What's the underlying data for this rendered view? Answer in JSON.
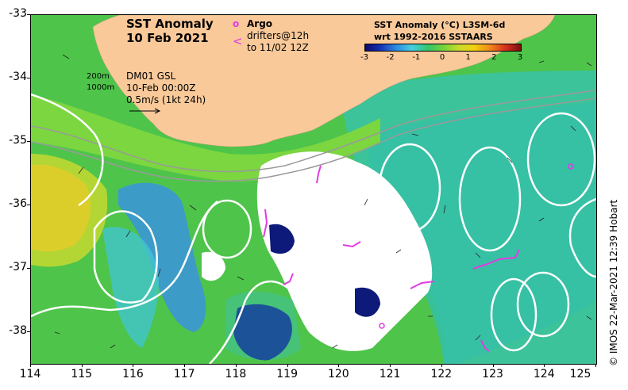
{
  "title": {
    "line1": "SST Anomaly",
    "line2": "10 Feb 2021"
  },
  "legend_argo": {
    "symbol": "o",
    "label": "Argo"
  },
  "legend_drifters": {
    "symbol": "<",
    "line1": "drifters@12h",
    "line2": "to 11/02 12Z"
  },
  "contour_labels": {
    "c200": "200m",
    "c1000": "1000m"
  },
  "model_info": {
    "line1": "DM01 GSL",
    "line2": "10-Feb 00:00Z",
    "line3": "0.5m/s (1kt 24h)"
  },
  "colorbar": {
    "title1": "SST Anomaly (°C) L3SM-6d",
    "title2": "wrt 1992-2016 SSTAARS",
    "ticks": [
      "-3",
      "-2",
      "-1",
      "0",
      "1",
      "2",
      "3"
    ],
    "range": [
      -3,
      3
    ],
    "colors": [
      "#0a0a6e",
      "#1533b5",
      "#2e8ce0",
      "#45cfe0",
      "#33c46e",
      "#74d23a",
      "#c6dc2a",
      "#f2d010",
      "#f08a1a",
      "#d8301e",
      "#7a1010"
    ]
  },
  "credit": "© IMOS 22-Mar-2021 12:39 Hobart",
  "axes": {
    "x_ticks": [
      "114",
      "115",
      "116",
      "117",
      "118",
      "119",
      "120",
      "121",
      "122",
      "123",
      "124",
      "125"
    ],
    "y_ticks": [
      "-33",
      "-34",
      "-35",
      "-36",
      "-37",
      "-38"
    ],
    "x_range": [
      114,
      125
    ],
    "y_range": [
      -38.5,
      -33
    ]
  },
  "colors": {
    "land": "#f9c99a",
    "no_data": "#ffffff",
    "contour": "#ffffff",
    "argo": "#e23ce2",
    "drifter": "#e23ce2"
  }
}
